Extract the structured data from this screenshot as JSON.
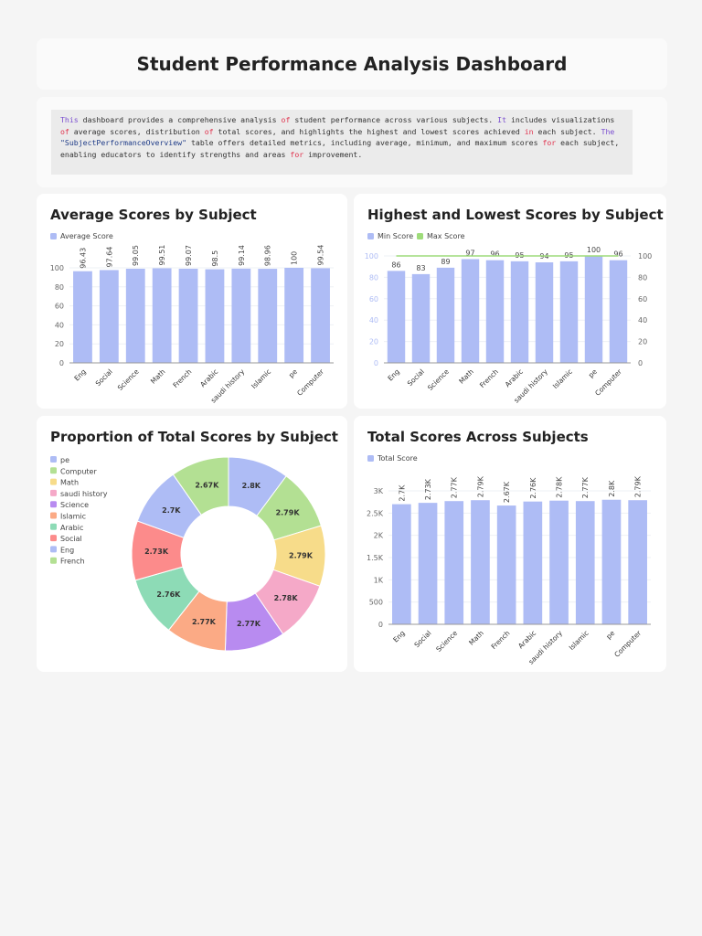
{
  "header": {
    "title": "Student Performance Analysis Dashboard"
  },
  "description": {
    "parts": [
      {
        "t": "This",
        "c": "kw"
      },
      {
        "t": " dashboard provides a comprehensive analysis "
      },
      {
        "t": "of",
        "c": "op"
      },
      {
        "t": " student performance across various subjects. "
      },
      {
        "t": "It",
        "c": "kw"
      },
      {
        "t": " includes visualizations "
      },
      {
        "t": "of",
        "c": "op"
      },
      {
        "t": " average scores, distribution "
      },
      {
        "t": "of",
        "c": "op"
      },
      {
        "t": " total scores, and highlights the highest and lowest scores achieved "
      },
      {
        "t": "in",
        "c": "op"
      },
      {
        "t": " each subject. "
      },
      {
        "t": "The",
        "c": "kw"
      },
      {
        "t": " "
      },
      {
        "t": "\"SubjectPerformanceOverview\"",
        "c": "str"
      },
      {
        "t": " table offers detailed metrics, including average, minimum, and maximum scores "
      },
      {
        "t": "for",
        "c": "op"
      },
      {
        "t": " each subject, enabling educators to identify strengths and areas "
      },
      {
        "t": "for",
        "c": "op"
      },
      {
        "t": " improvement."
      }
    ]
  },
  "colors": {
    "bar": "#aebcf5",
    "max_line": "#9edc7a"
  },
  "chart_data": [
    {
      "id": "avg",
      "type": "bar",
      "title": "Average Scores by Subject",
      "categories": [
        "Eng",
        "Social",
        "Science",
        "Math",
        "French",
        "Arabic",
        "saudi history",
        "Islamic",
        "pe",
        "Computer"
      ],
      "series": [
        {
          "name": "Average Score",
          "values": [
            96.43,
            97.64,
            99.05,
            99.51,
            99.07,
            98.5,
            99.14,
            98.96,
            100,
            99.54
          ],
          "labels": [
            "96.43",
            "97.64",
            "99.05",
            "99.51",
            "99.07",
            "98.5",
            "99.14",
            "98.96",
            "100",
            "99.54"
          ]
        }
      ],
      "ylim": [
        0,
        100
      ],
      "yticks": [
        0,
        20,
        40,
        60,
        80,
        100
      ],
      "grid": true,
      "legend": "top-left"
    },
    {
      "id": "minmax",
      "type": "bar",
      "title": "Highest and Lowest Scores by Subject",
      "categories": [
        "Eng",
        "Social",
        "Science",
        "Math",
        "French",
        "Arabic",
        "saudi history",
        "Islamic",
        "pe",
        "Computer"
      ],
      "series": [
        {
          "name": "Min Score",
          "type": "bar",
          "values": [
            86,
            83,
            89,
            97,
            96,
            95,
            94,
            95,
            100,
            96
          ]
        },
        {
          "name": "Max Score",
          "type": "line",
          "values": [
            100,
            100,
            100,
            100,
            100,
            100,
            100,
            100,
            100,
            100
          ]
        }
      ],
      "ylim": [
        0,
        100
      ],
      "yticks": [
        0,
        20,
        40,
        60,
        80,
        100
      ],
      "y2ticks": [
        0,
        20,
        40,
        60,
        80,
        100
      ],
      "grid": true,
      "legend": "top-left"
    },
    {
      "id": "pie",
      "type": "pie",
      "title": "Proportion of Total Scores by Subject",
      "donut": true,
      "slices": [
        {
          "name": "pe",
          "value": 2800,
          "label": "2.8K",
          "color": "#aebcf5"
        },
        {
          "name": "Computer",
          "value": 2790,
          "label": "2.79K",
          "color": "#b3e093"
        },
        {
          "name": "Math",
          "value": 2790,
          "label": "2.79K",
          "color": "#f7dc8a"
        },
        {
          "name": "saudi history",
          "value": 2780,
          "label": "2.78K",
          "color": "#f5a9c8"
        },
        {
          "name": "Science",
          "value": 2770,
          "label": "2.77K",
          "color": "#b88bf0"
        },
        {
          "name": "Islamic",
          "value": 2770,
          "label": "2.77K",
          "color": "#fbaa85"
        },
        {
          "name": "Arabic",
          "value": 2760,
          "label": "2.76K",
          "color": "#8ddbb6"
        },
        {
          "name": "Social",
          "value": 2730,
          "label": "2.73K",
          "color": "#fc8b8b"
        },
        {
          "name": "Eng",
          "value": 2700,
          "label": "2.7K",
          "color": "#aebcf5"
        },
        {
          "name": "French",
          "value": 2670,
          "label": "2.67K",
          "color": "#b3e093"
        }
      ],
      "legend": "left"
    },
    {
      "id": "total",
      "type": "bar",
      "title": "Total Scores Across Subjects",
      "categories": [
        "Eng",
        "Social",
        "Science",
        "Math",
        "French",
        "Arabic",
        "saudi history",
        "Islamic",
        "pe",
        "Computer"
      ],
      "series": [
        {
          "name": "Total Score",
          "values": [
            2700,
            2730,
            2770,
            2790,
            2670,
            2760,
            2780,
            2770,
            2800,
            2790
          ],
          "labels": [
            "2.7K",
            "2.73K",
            "2.77K",
            "2.79K",
            "2.67K",
            "2.76K",
            "2.78K",
            "2.77K",
            "2.8K",
            "2.79K"
          ]
        }
      ],
      "ylim": [
        0,
        3000
      ],
      "yticks": [
        0,
        500,
        1000,
        1500,
        2000,
        2500,
        3000
      ],
      "ytick_labels": [
        "0",
        "500",
        "1K",
        "1.5K",
        "2K",
        "2.5K",
        "3K"
      ],
      "grid": true,
      "legend": "top-left"
    }
  ]
}
